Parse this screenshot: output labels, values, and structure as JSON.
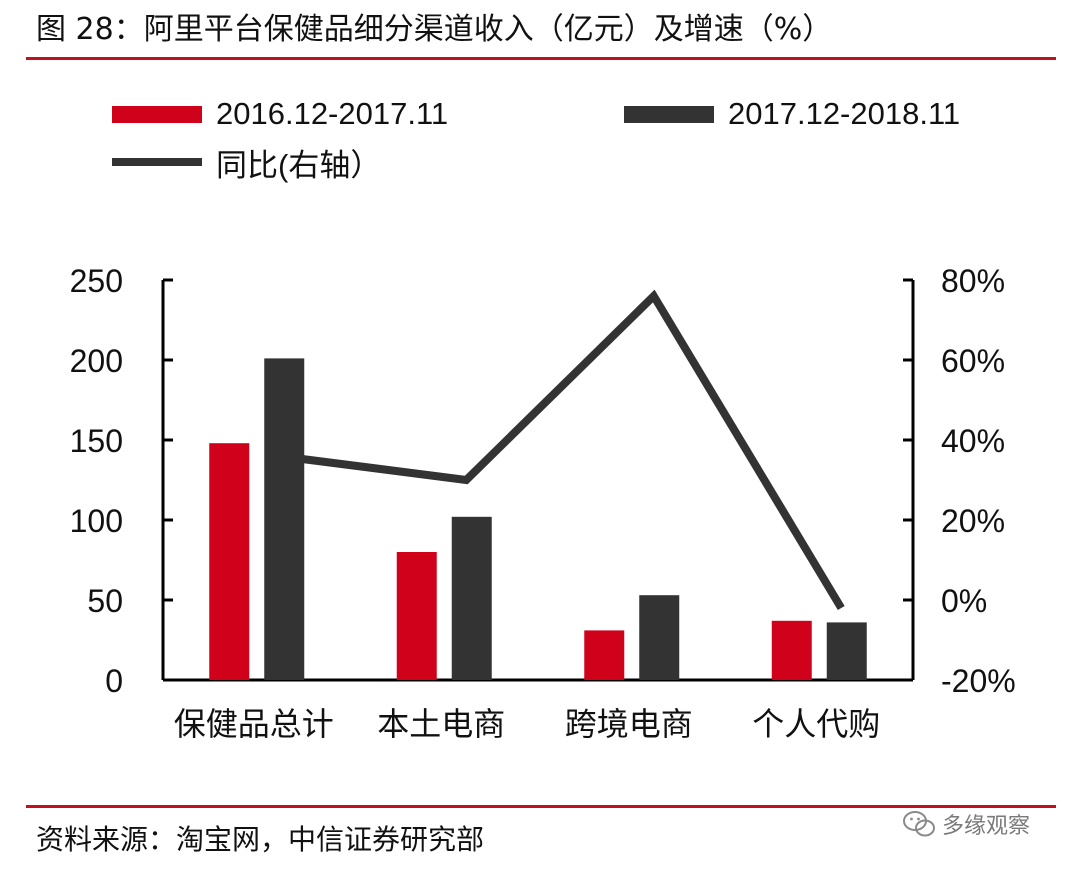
{
  "header": {
    "title": "图 28：阿里平台保健品细分渠道收入（亿元）及增速（%）"
  },
  "footer": {
    "source": "资料来源：淘宝网，中信证券研究部",
    "watermark": "多缘观察"
  },
  "colors": {
    "rule": "#c0111f",
    "series1": "#d0021b",
    "series2": "#333333",
    "line": "#333333"
  },
  "icons": {
    "watermark": "wechat-icon"
  },
  "chart_data": {
    "type": "bar",
    "categories": [
      "保健品总计",
      "本土电商",
      "跨境电商",
      "个人代购"
    ],
    "series": [
      {
        "name": "2016.12-2017.11",
        "type": "bar",
        "axis": "left",
        "values": [
          148,
          80,
          31,
          37
        ]
      },
      {
        "name": "2017.12-2018.11",
        "type": "bar",
        "axis": "left",
        "values": [
          201,
          102,
          53,
          36
        ]
      },
      {
        "name": "同比(右轴）",
        "type": "line",
        "axis": "right",
        "values": [
          36,
          30,
          76,
          -2
        ]
      }
    ],
    "ylim": [
      0,
      250
    ],
    "yticks": [
      "0",
      "50",
      "100",
      "150",
      "200",
      "250"
    ],
    "y2lim": [
      -20,
      80
    ],
    "y2ticks": [
      "-20%",
      "0%",
      "20%",
      "40%",
      "60%",
      "80%"
    ],
    "legend_position": "top-left",
    "grid": false
  }
}
